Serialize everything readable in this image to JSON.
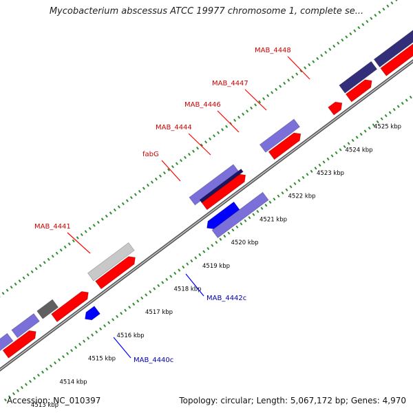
{
  "title": "Mycobacterium abscessus ATCC 19977 chromosome 1, complete se...",
  "footer": {
    "accession": "Accession: NC_010397",
    "summary": "Topology: circular; Length: 5,067,172 bp; Genes: 4,970"
  },
  "ticks": [
    "4513 kbp",
    "4514 kbp",
    "4515 kbp",
    "4516 kbp",
    "4517 kbp",
    "4518 kbp",
    "4519 kbp",
    "4520 kbp",
    "4521 kbp",
    "4522 kbp",
    "4523 kbp",
    "4524 kbp",
    "4525 kbp"
  ],
  "gene_labels": {
    "forward": [
      "MAB_4441",
      "fabG",
      "MAB_4444",
      "MAB_4446",
      "MAB_4447",
      "MAB_4448"
    ],
    "reverse": [
      "MAB_4440c",
      "MAB_4442c"
    ]
  },
  "colors": {
    "forward_gene": "#ff0000",
    "reverse_gene": "#0000ff",
    "forward_label": "#cc0000",
    "reverse_label": "#0000aa",
    "selected_feature": "#332e7a",
    "light_feature": "#7b6fd9",
    "pseudo_feature": "#c8c8c8",
    "dark_feature": "#606060",
    "backbone": "#8c8c8c",
    "tick_mark": "#2e8b2e",
    "tick_label": "#000000"
  },
  "icons": {
    "forward_arrow": "right-arrow-block",
    "reverse_arrow": "left-arrow-block"
  }
}
